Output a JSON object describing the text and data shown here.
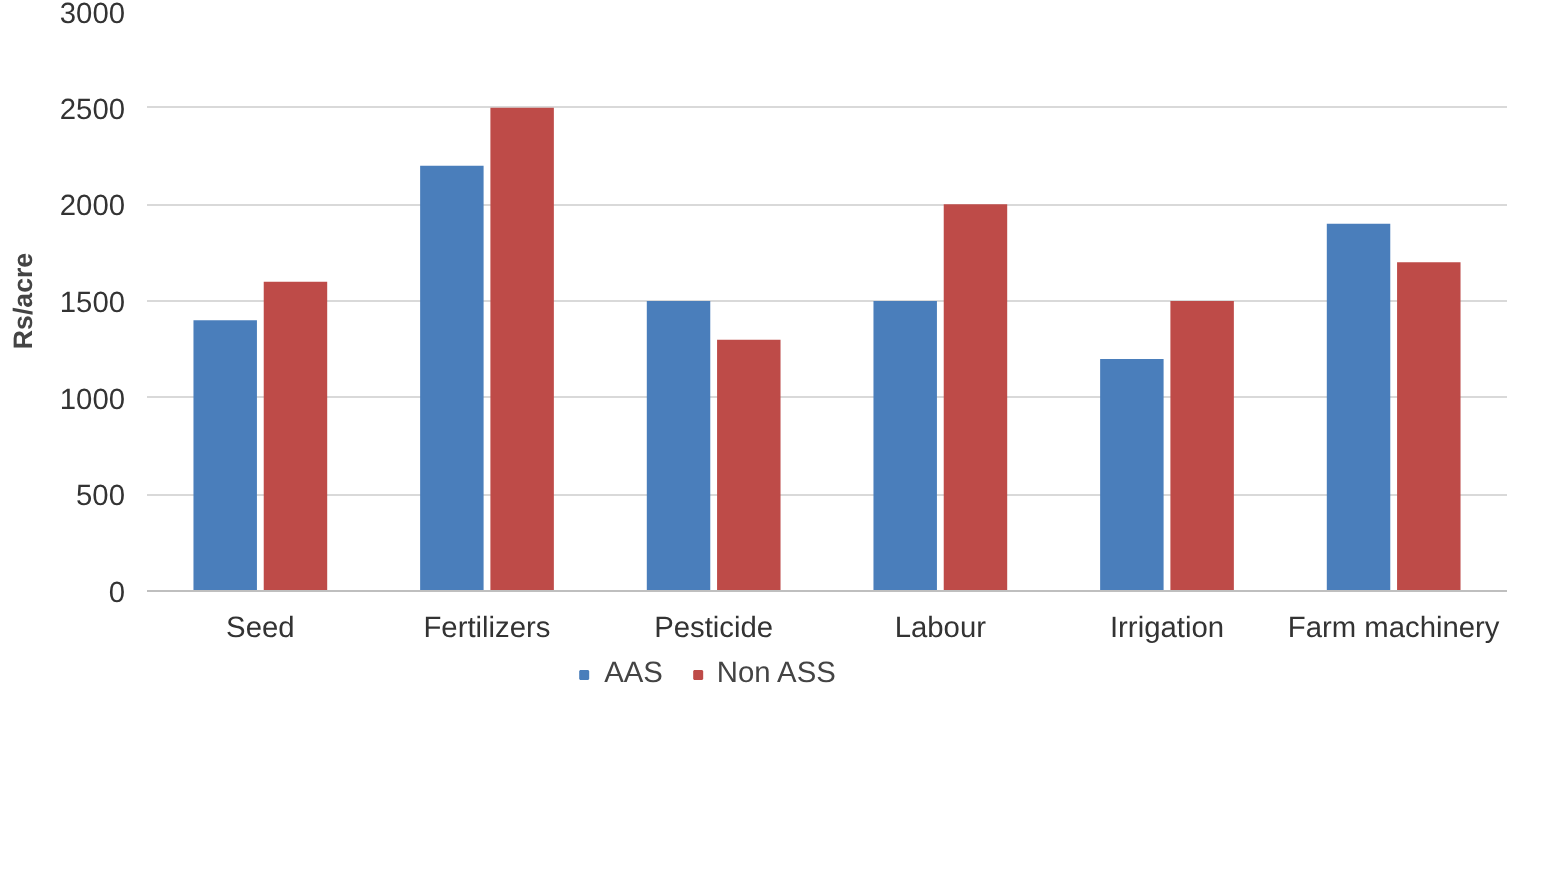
{
  "chart_data": {
    "type": "bar",
    "ylabel": "Rs/acre",
    "categories": [
      "Seed",
      "Fertilizers",
      "Pesticide",
      "Labour",
      "Irrigation",
      "Farm machinery"
    ],
    "series": [
      {
        "name": "AAS",
        "color": "#4a7ebb",
        "values": [
          1400,
          2200,
          1500,
          1500,
          1200,
          1900
        ]
      },
      {
        "name": "Non ASS",
        "color": "#be4b48",
        "values": [
          1600,
          2500,
          1300,
          2000,
          1500,
          1700
        ]
      }
    ],
    "ylim": [
      0,
      3000
    ],
    "yticks": [
      0,
      500,
      1000,
      1500,
      2000,
      2500,
      3000
    ],
    "grid": "y",
    "legend": "bottom"
  }
}
